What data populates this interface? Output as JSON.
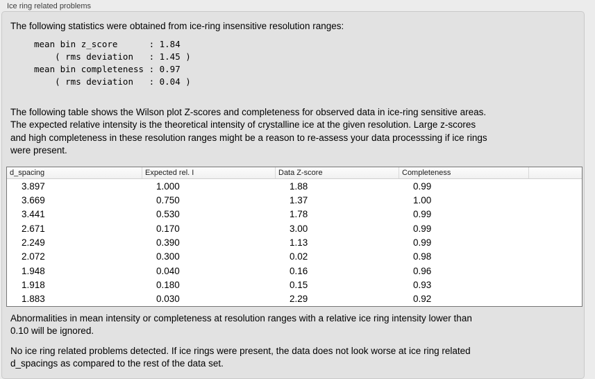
{
  "panel": {
    "title": "Ice ring related problems"
  },
  "intro": "The following statistics were obtained from ice-ring insensitive resolution ranges:",
  "stats_block": "mean bin z_score      : 1.84\n    ( rms deviation   : 1.45 )\nmean bin completeness : 0.97\n    ( rms deviation   : 0.04 )",
  "stats": {
    "mean_bin_z_score": "1.84",
    "z_score_rms_deviation": "1.45",
    "mean_bin_completeness": "0.97",
    "completeness_rms_deviation": "0.04"
  },
  "description": "The following table shows the Wilson plot Z-scores and completeness for observed data in ice-ring sensitive areas.\nThe expected relative intensity is the theoretical intensity of crystalline ice at the given resolution. Large z-scores\nand high completeness in these resolution ranges might be a reason to re-assess your data processsing if ice rings\nwere present.",
  "table": {
    "columns": [
      "d_spacing",
      "Expected rel. I",
      "Data Z-score",
      "Completeness"
    ],
    "rows": [
      [
        "3.897",
        "1.000",
        "1.88",
        "0.99"
      ],
      [
        "3.669",
        "0.750",
        "1.37",
        "1.00"
      ],
      [
        "3.441",
        "0.530",
        "1.78",
        "0.99"
      ],
      [
        "2.671",
        "0.170",
        "3.00",
        "0.99"
      ],
      [
        "2.249",
        "0.390",
        "1.13",
        "0.99"
      ],
      [
        "2.072",
        "0.300",
        "0.02",
        "0.98"
      ],
      [
        "1.948",
        "0.040",
        "0.16",
        "0.96"
      ],
      [
        "1.918",
        "0.180",
        "0.15",
        "0.93"
      ],
      [
        "1.883",
        "0.030",
        "2.29",
        "0.92"
      ]
    ]
  },
  "notes": {
    "ignore_threshold": "Abnormalities in mean intensity or completeness at resolution ranges with a relative ice ring intensity lower than\n0.10 will be ignored.",
    "conclusion": "No ice ring related problems detected. If ice rings were present, the data does not look worse at ice ring related\nd_spacings as compared to the rest of the data set."
  },
  "colors": {
    "page_background": "#ececec",
    "panel_background": "#e2e2e2",
    "table_background": "#ffffff",
    "table_border": "#767676"
  }
}
